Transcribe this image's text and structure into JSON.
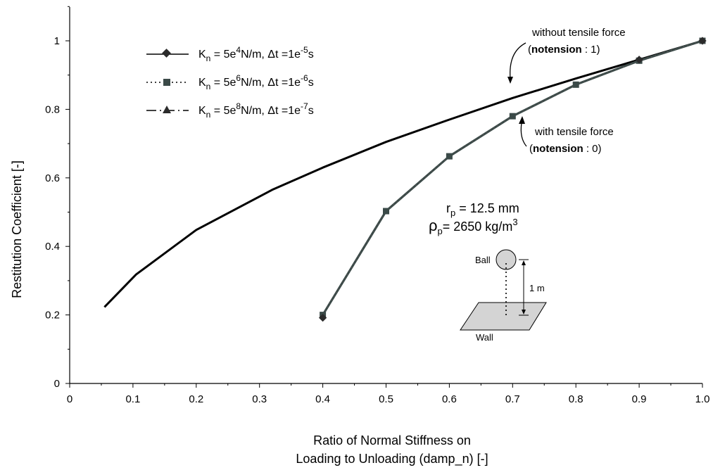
{
  "chart_data": {
    "type": "line",
    "xlabel_line1": "Ratio of Normal Stiffness on",
    "xlabel_line2": "Loading to Unloading (damp_n) [-]",
    "ylabel": "Restitution Coefficient [-]",
    "xlim": [
      0,
      1.0
    ],
    "ylim": [
      0,
      1.0
    ],
    "x_ticks": [
      "0",
      "0.1",
      "0.2",
      "0.3",
      "0.4",
      "0.5",
      "0.6",
      "0.7",
      "0.8",
      "0.9",
      "1.0"
    ],
    "y_ticks": [
      "0",
      "0.2",
      "0.4",
      "0.6",
      "0.8",
      "1"
    ],
    "grid": false,
    "legend_position": "top-left",
    "legend": [
      {
        "symbol": "K",
        "sub": "n",
        "eq": " = 5e",
        "sup": "4",
        "mid": "N/m, Δt =1e",
        "sup2": "-5",
        "end": "s",
        "marker": "diamond",
        "dash": "solid"
      },
      {
        "symbol": "K",
        "sub": "n",
        "eq": " = 5e",
        "sup": "6",
        "mid": "N/m, Δt =1e",
        "sup2": "-6",
        "end": "s",
        "marker": "square",
        "dash": "dotted"
      },
      {
        "symbol": "K",
        "sub": "n",
        "eq": " = 5e",
        "sup": "8",
        "mid": "N/m, Δt =1e",
        "sup2": "-7",
        "end": "s",
        "marker": "triangle",
        "dash": "dashdot"
      }
    ],
    "series": [
      {
        "curve": "without_tension",
        "color": "#000000",
        "x": [
          0.055,
          0.105,
          0.2,
          0.32,
          0.4,
          0.5,
          0.6,
          0.7,
          0.8,
          0.9,
          1.0
        ],
        "y": [
          0.223,
          0.318,
          0.448,
          0.565,
          0.63,
          0.705,
          0.77,
          0.833,
          0.89,
          0.945,
          1.0
        ]
      },
      {
        "curve": "with_tension",
        "color": "#3b4a48",
        "x": [
          0.4,
          0.5,
          0.6,
          0.7,
          0.8,
          0.9,
          1.0
        ],
        "y": [
          0.2,
          0.503,
          0.663,
          0.78,
          0.872,
          0.942,
          1.0
        ]
      }
    ],
    "annotations": {
      "without_tensile_line1": "without tensile force",
      "without_tensile_bold": "notension",
      "without_tensile_rest": " : 1)",
      "with_tensile_line1": "with tensile force",
      "with_tensile_bold": "notension",
      "with_tensile_rest": " : 0)",
      "open_paren": "(",
      "radius_sym": "r",
      "radius_sub": "p",
      "radius_val": " = 12.5 mm",
      "density_sym": "ρ",
      "density_sub": "p",
      "density_val": "= 2650 kg/m",
      "density_sup": "3",
      "ball_label": "Ball",
      "height_label": "1 m",
      "wall_label": "Wall"
    }
  }
}
